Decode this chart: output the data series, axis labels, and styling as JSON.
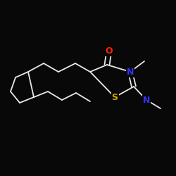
{
  "background_color": "#080808",
  "bond_color": "#e8e8e8",
  "atom_colors": {
    "O": "#ff2200",
    "N": "#3333ff",
    "S": "#ccaa00"
  },
  "figsize": [
    2.5,
    2.5
  ],
  "dpi": 100
}
